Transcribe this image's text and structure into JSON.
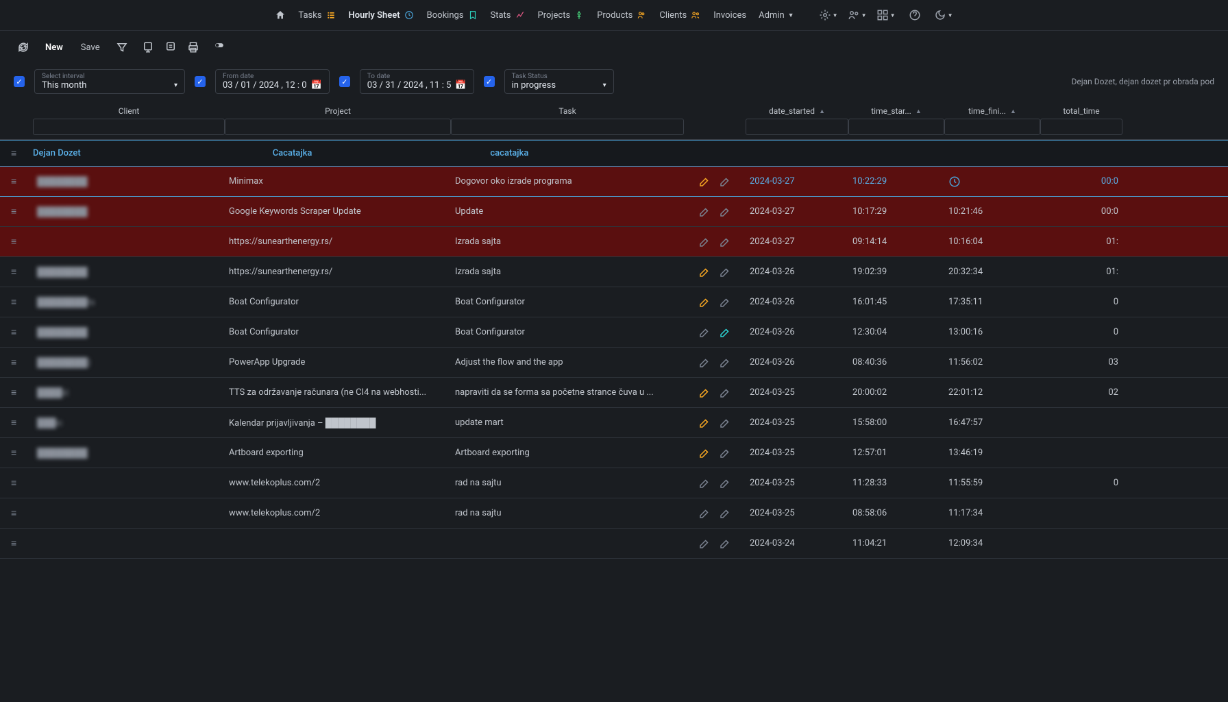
{
  "nav": {
    "items": [
      {
        "label": "Tasks",
        "color": "#f5a623"
      },
      {
        "label": "Hourly Sheet",
        "color": "#4aa3d8",
        "active": true
      },
      {
        "label": "Bookings",
        "color": "#2dd4bf"
      },
      {
        "label": "Stats",
        "color": "#e75a87"
      },
      {
        "label": "Projects",
        "color": "#4ade80"
      },
      {
        "label": "Products",
        "color": "#f5a623"
      },
      {
        "label": "Clients",
        "color": "#f5a623"
      },
      {
        "label": "Invoices",
        "color": "#c0c5cc"
      },
      {
        "label": "Admin",
        "color": "#c0c5cc"
      }
    ]
  },
  "toolbar": {
    "new": "New",
    "save": "Save"
  },
  "filters": {
    "interval": {
      "label": "Select interval",
      "value": "This month"
    },
    "from": {
      "label": "From date",
      "value": "03 / 01 / 2024 , 12 : 0"
    },
    "to": {
      "label": "To date",
      "value": "03 / 31 / 2024 , 11 : 5"
    },
    "status": {
      "label": "Task Status",
      "value": "in progress"
    }
  },
  "user": "Dejan Dozet, dejan dozet pr obrada pod",
  "columns": {
    "client": "Client",
    "project": "Project",
    "task": "Task",
    "date_started": "date_started",
    "time_started": "time_star...",
    "time_finished": "time_fini...",
    "total_time": "total_time"
  },
  "group": {
    "primary": "Dejan Dozet",
    "secondary": "Cacatajka",
    "tertiary": "cacatajka"
  },
  "rows": [
    {
      "client": "████████",
      "project": "Minimax",
      "task": "Dogovor oko izrade programa",
      "edit1": "yellow",
      "edit2": "gray",
      "date": "2024-03-27",
      "t1": "10:22:29",
      "t2": "clock",
      "total": "00:0",
      "hl": "top"
    },
    {
      "client": "████████",
      "project": "Google Keywords Scraper Update",
      "task": "Update",
      "edit1": "gray",
      "edit2": "gray",
      "date": "2024-03-27",
      "t1": "10:17:29",
      "t2": "10:21:46",
      "total": "00:0",
      "hl": "red"
    },
    {
      "client": "",
      "project": "https://sunearthenergy.rs/",
      "task": "Izrada sajta",
      "edit1": "gray",
      "edit2": "gray",
      "date": "2024-03-27",
      "t1": "09:14:14",
      "t2": "10:16:04",
      "total": "01:",
      "hl": "red"
    },
    {
      "client": "████████",
      "project": "https://sunearthenergy.rs/",
      "task": "Izrada sajta",
      "edit1": "yellow",
      "edit2": "gray",
      "date": "2024-03-26",
      "t1": "19:02:39",
      "t2": "20:32:34",
      "total": "01:"
    },
    {
      "client": "████████ts",
      "project": "Boat Configurator",
      "task": "Boat Configurator",
      "edit1": "yellow",
      "edit2": "gray",
      "date": "2024-03-26",
      "t1": "16:01:45",
      "t2": "17:35:11",
      "total": "0"
    },
    {
      "client": "████████",
      "project": "Boat Configurator",
      "task": "Boat Configurator",
      "edit1": "gray",
      "edit2": "cyan",
      "date": "2024-03-26",
      "t1": "12:30:04",
      "t2": "13:00:16",
      "total": "0"
    },
    {
      "client": "████████)",
      "project": "PowerApp Upgrade",
      "task": "Adjust the flow and the app",
      "edit1": "gray",
      "edit2": "gray",
      "date": "2024-03-26",
      "t1": "08:40:36",
      "t2": "11:56:02",
      "total": "03"
    },
    {
      "client": "████ić",
      "project": "TTS za održavanje računara (ne CI4 na webhosti...",
      "task": "napraviti da se forma sa početne strance čuva u ...",
      "edit1": "yellow",
      "edit2": "gray",
      "date": "2024-03-25",
      "t1": "20:00:02",
      "t2": "22:01:12",
      "total": "02"
    },
    {
      "client": "███ic",
      "project": "Kalendar prijavljivanja – ████████",
      "task": "update mart",
      "edit1": "yellow",
      "edit2": "gray",
      "date": "2024-03-25",
      "t1": "15:58:00",
      "t2": "16:47:57",
      "total": ""
    },
    {
      "client": "████████",
      "project": "Artboard exporting",
      "task": "Artboard exporting",
      "edit1": "yellow",
      "edit2": "gray",
      "date": "2024-03-25",
      "t1": "12:57:01",
      "t2": "13:46:19",
      "total": ""
    },
    {
      "client": "",
      "project": "www.telekoplus.com/2",
      "task": "rad na sajtu",
      "edit1": "gray",
      "edit2": "gray",
      "date": "2024-03-25",
      "t1": "11:28:33",
      "t2": "11:55:59",
      "total": "0"
    },
    {
      "client": "",
      "project": "www.telekoplus.com/2",
      "task": "rad na sajtu",
      "edit1": "gray",
      "edit2": "gray",
      "date": "2024-03-25",
      "t1": "08:58:06",
      "t2": "11:17:34",
      "total": ""
    },
    {
      "client": "",
      "project": "",
      "task": "",
      "edit1": "gray",
      "edit2": "gray",
      "date": "2024-03-24",
      "t1": "11:04:21",
      "t2": "12:09:34",
      "total": ""
    }
  ]
}
